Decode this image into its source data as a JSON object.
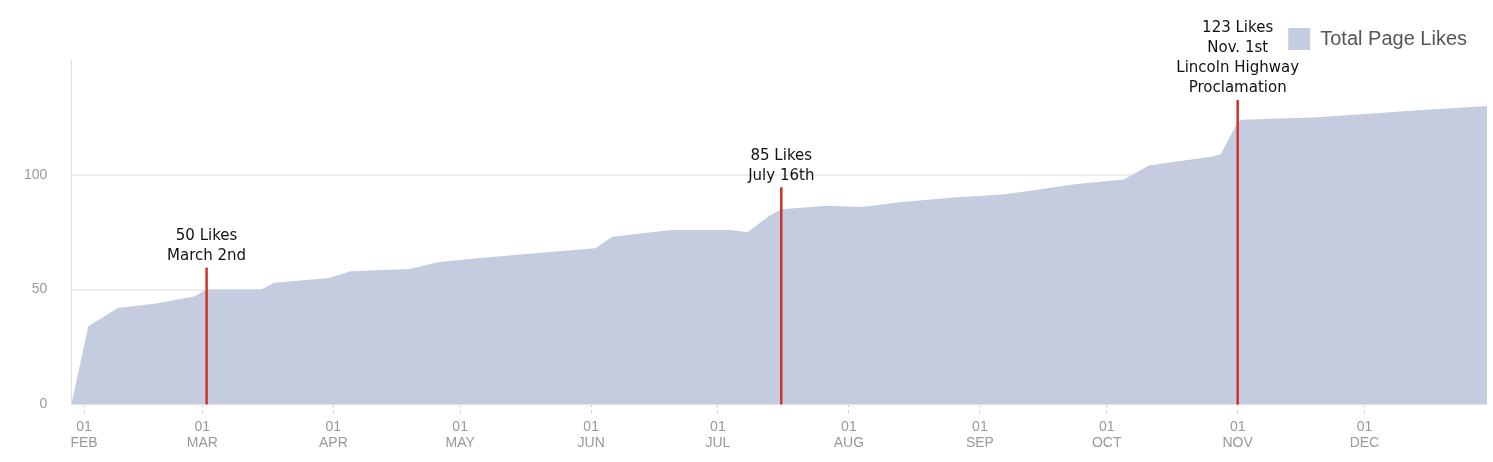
{
  "chart_data": {
    "type": "area",
    "legend": "top right",
    "grid": "y",
    "x": [
      "--01-29",
      "--02-02",
      "--02-09",
      "--02-18",
      "--02-27",
      "--03-02",
      "--03-15",
      "--03-18",
      "--03-31",
      "--04-05",
      "--04-19",
      "--04-26",
      "--05-07",
      "--06-02",
      "--06-06",
      "--06-20",
      "--07-04",
      "--07-08",
      "--07-13",
      "--07-16",
      "--07-27",
      "--08-04",
      "--08-13",
      "--08-25",
      "--09-07",
      "--09-24",
      "--10-05",
      "--10-11",
      "--10-26",
      "--10-28",
      "--11-01",
      "--11-02",
      "--11-19",
      "--12-13",
      "--12-30"
    ],
    "series": [
      {
        "name": "Total Page Likes",
        "color": "#c5cce0",
        "values": [
          0,
          34,
          42,
          44,
          47,
          50,
          50,
          53,
          55,
          58,
          59,
          62,
          64,
          68,
          73,
          76,
          76,
          75,
          82,
          85,
          86.5,
          86,
          88,
          90,
          91.5,
          96,
          98,
          104,
          108,
          109,
          123,
          124,
          125,
          128,
          130
        ]
      }
    ],
    "xlim": [
      "--01-29",
      "--12-30"
    ],
    "xticks": [
      {
        "value": "--02-01",
        "label": "01\nFEB"
      },
      {
        "value": "--03-01",
        "label": "01\nMAR"
      },
      {
        "value": "--04-01",
        "label": "01\nAPR"
      },
      {
        "value": "--05-01",
        "label": "01\nMAY"
      },
      {
        "value": "--06-01",
        "label": "01\nJUN"
      },
      {
        "value": "--07-01",
        "label": "01\nJUL"
      },
      {
        "value": "--08-01",
        "label": "01\nAUG"
      },
      {
        "value": "--09-01",
        "label": "01\nSEP"
      },
      {
        "value": "--10-01",
        "label": "01\nOCT"
      },
      {
        "value": "--11-01",
        "label": "01\nNOV"
      },
      {
        "value": "--12-01",
        "label": "01\nDEC"
      }
    ],
    "ylim": [
      0,
      150
    ],
    "yticks": [
      0,
      50,
      100
    ],
    "ref_lines": [
      {
        "axis": "x",
        "value": "--03-02",
        "label": "50 Likes\nMarch 2nd",
        "color": "#d0302a"
      },
      {
        "axis": "x",
        "value": "--07-16",
        "label": "85 Likes\nJuly 16th",
        "color": "#d0302a"
      },
      {
        "axis": "x",
        "value": "--11-01",
        "label": "123 Likes\nNov. 1st\nLincoln Highway\nProclamation",
        "color": "#d0302a"
      }
    ]
  }
}
